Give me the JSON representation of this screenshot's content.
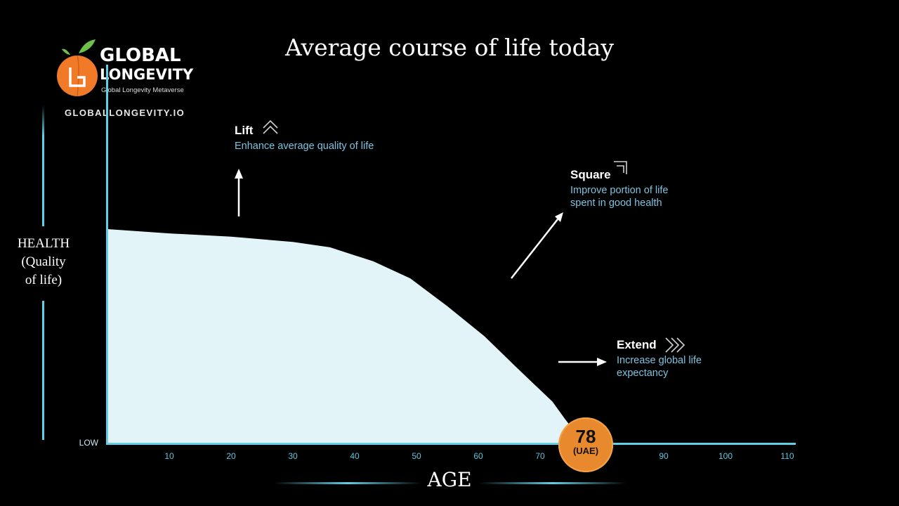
{
  "logo": {
    "line1": "GLOBAL",
    "line2": "LONGEVITY",
    "tagline": "Global Longevity Metaverse",
    "url": "GLOBALLONGEVITY.IO",
    "peach_color": "#f07a28",
    "leaf_color": "#6cc04a",
    "icon": "peach-logo-icon"
  },
  "colors": {
    "background": "#000000",
    "axis": "#5fd0e6",
    "area_fill": "#e2f4f8",
    "annotation_text": "#7cc3e0",
    "badge": "#e8892d"
  },
  "annotations": {
    "lift": {
      "title": "Lift",
      "body": [
        "Enhance average quality of life"
      ],
      "icon": "double-chevron-up-icon"
    },
    "square": {
      "title": "Square",
      "body": [
        "Improve portion of life",
        "spent in good health"
      ],
      "icon": "corner-chevron-icon"
    },
    "extend": {
      "title": "Extend",
      "body": [
        "Increase global life",
        "expectancy"
      ],
      "icon": "double-chevron-right-icon"
    }
  },
  "badge": {
    "value": "78",
    "label": "(UAE)"
  },
  "chart_data": {
    "type": "area",
    "title": "Average course of life today",
    "xlabel": "AGE",
    "ylabel_lines": [
      "HEALTH",
      "(Quality",
      "of life)"
    ],
    "y_tick_label": "LOW",
    "xlim": [
      0,
      110
    ],
    "ylim": [
      0,
      100
    ],
    "x_ticks": [
      10,
      20,
      30,
      40,
      50,
      60,
      70,
      80,
      90,
      100,
      110
    ],
    "grid": false,
    "legend": "none",
    "series": [
      {
        "x": [
          0,
          10,
          20,
          30,
          36,
          43,
          49,
          55,
          61,
          66,
          70,
          72,
          74,
          76,
          78
        ],
        "y": [
          100,
          98,
          96.5,
          94,
          91.5,
          85,
          77,
          64,
          50,
          36,
          25,
          19.5,
          11.5,
          4,
          0
        ]
      }
    ]
  }
}
